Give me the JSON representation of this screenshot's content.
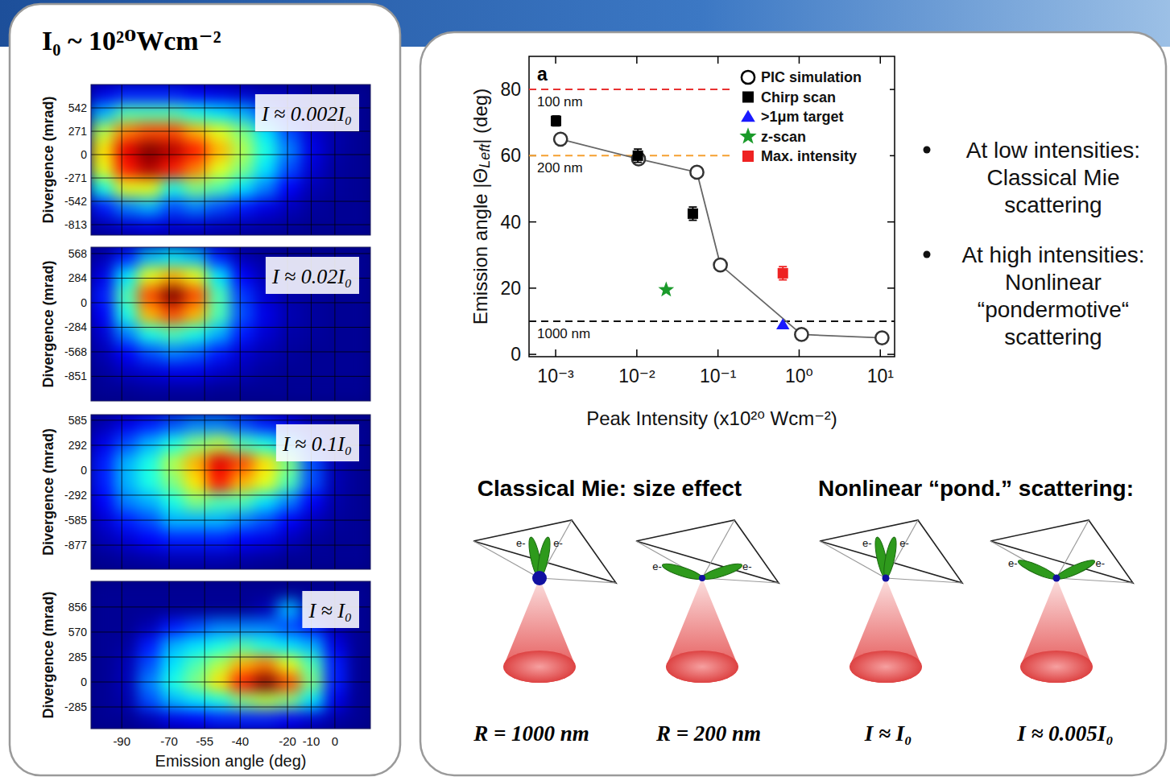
{
  "header": {
    "text": "I₀ ~ 10²⁰Wcm⁻²"
  },
  "chart_data": [
    {
      "type": "heatmap",
      "annotation": "I ≈ 0.002I₀",
      "ylabel": "Divergence (mrad)",
      "xlim": [
        -103,
        15
      ],
      "xticks": [
        -90,
        -70,
        -55,
        -40,
        -20,
        -10,
        0
      ],
      "ylim": [
        -934,
        813
      ],
      "yticks": [
        542,
        271,
        0,
        -271,
        -542,
        -813
      ],
      "grid": true,
      "tick_labels": "y",
      "zlim": [
        0,
        1
      ],
      "cells": [
        [
          0.1,
          0.15,
          0.15,
          0.15,
          0.12,
          0.1,
          0.08,
          0.05,
          0.05,
          0.03,
          0.02,
          0.02
        ],
        [
          0.3,
          0.45,
          0.45,
          0.45,
          0.4,
          0.35,
          0.3,
          0.2,
          0.12,
          0.06,
          0.03,
          0.02
        ],
        [
          0.55,
          0.75,
          0.8,
          0.8,
          0.7,
          0.6,
          0.5,
          0.35,
          0.2,
          0.08,
          0.04,
          0.02
        ],
        [
          0.65,
          0.9,
          1.0,
          0.95,
          0.85,
          0.7,
          0.55,
          0.4,
          0.25,
          0.1,
          0.04,
          0.02
        ],
        [
          0.6,
          0.85,
          0.95,
          0.85,
          0.75,
          0.6,
          0.5,
          0.35,
          0.2,
          0.08,
          0.03,
          0.02
        ],
        [
          0.4,
          0.6,
          0.6,
          0.4,
          0.5,
          0.45,
          0.35,
          0.25,
          0.12,
          0.05,
          0.03,
          0.02
        ],
        [
          0.15,
          0.25,
          0.3,
          0.2,
          0.25,
          0.2,
          0.15,
          0.1,
          0.06,
          0.03,
          0.02,
          0.02
        ],
        [
          0.05,
          0.08,
          0.1,
          0.08,
          0.08,
          0.06,
          0.05,
          0.04,
          0.03,
          0.02,
          0.02,
          0.02
        ]
      ]
    },
    {
      "type": "heatmap",
      "annotation": "I ≈ 0.02I₀",
      "ylabel": "Divergence (mrad)",
      "xlim": [
        -103,
        15
      ],
      "xticks": [
        -90,
        -70,
        -55,
        -40,
        -20,
        -10,
        0
      ],
      "ylim": [
        -1136,
        642
      ],
      "yticks": [
        568,
        284,
        0,
        -284,
        -568,
        -851
      ],
      "grid": true,
      "tick_labels": "y",
      "zlim": [
        0,
        1
      ],
      "cells": [
        [
          0.05,
          0.15,
          0.3,
          0.35,
          0.3,
          0.15,
          0.05,
          0.03,
          0.02,
          0.02,
          0.02,
          0.02
        ],
        [
          0.1,
          0.35,
          0.6,
          0.7,
          0.6,
          0.35,
          0.12,
          0.05,
          0.03,
          0.02,
          0.02,
          0.02
        ],
        [
          0.15,
          0.45,
          0.8,
          1.0,
          0.8,
          0.45,
          0.18,
          0.08,
          0.04,
          0.03,
          0.02,
          0.02
        ],
        [
          0.12,
          0.4,
          0.7,
          0.8,
          0.7,
          0.45,
          0.2,
          0.1,
          0.05,
          0.03,
          0.02,
          0.02
        ],
        [
          0.08,
          0.25,
          0.4,
          0.45,
          0.4,
          0.3,
          0.15,
          0.08,
          0.04,
          0.03,
          0.02,
          0.02
        ],
        [
          0.05,
          0.12,
          0.2,
          0.25,
          0.22,
          0.15,
          0.08,
          0.05,
          0.03,
          0.02,
          0.02,
          0.02
        ],
        [
          0.03,
          0.06,
          0.08,
          0.1,
          0.1,
          0.07,
          0.05,
          0.03,
          0.02,
          0.02,
          0.02,
          0.02
        ],
        [
          0.02,
          0.02,
          0.03,
          0.03,
          0.03,
          0.02,
          0.02,
          0.02,
          0.02,
          0.02,
          0.02,
          0.02
        ]
      ]
    },
    {
      "type": "heatmap",
      "annotation": "I ≈ 0.1I₀",
      "ylabel": "Divergence (mrad)",
      "xlim": [
        -103,
        15
      ],
      "xticks": [
        -90,
        -70,
        -55,
        -40,
        -20,
        -10,
        0
      ],
      "ylim": [
        -1159,
        650
      ],
      "yticks": [
        585,
        292,
        0,
        -292,
        -585,
        -877
      ],
      "grid": true,
      "tick_labels": "y",
      "zlim": [
        0,
        1
      ],
      "cells": [
        [
          0.05,
          0.1,
          0.15,
          0.2,
          0.25,
          0.25,
          0.2,
          0.15,
          0.1,
          0.05,
          0.03,
          0.02
        ],
        [
          0.1,
          0.2,
          0.3,
          0.4,
          0.5,
          0.55,
          0.45,
          0.4,
          0.3,
          0.15,
          0.05,
          0.02
        ],
        [
          0.15,
          0.3,
          0.4,
          0.55,
          0.7,
          0.9,
          0.8,
          0.65,
          0.5,
          0.2,
          0.05,
          0.02
        ],
        [
          0.15,
          0.3,
          0.4,
          0.5,
          0.65,
          0.85,
          0.7,
          0.6,
          0.45,
          0.2,
          0.05,
          0.02
        ],
        [
          0.12,
          0.25,
          0.3,
          0.4,
          0.5,
          0.45,
          0.45,
          0.35,
          0.25,
          0.12,
          0.04,
          0.02
        ],
        [
          0.08,
          0.15,
          0.2,
          0.3,
          0.3,
          0.3,
          0.25,
          0.2,
          0.12,
          0.06,
          0.03,
          0.02
        ],
        [
          0.05,
          0.08,
          0.12,
          0.15,
          0.15,
          0.15,
          0.12,
          0.1,
          0.06,
          0.03,
          0.02,
          0.02
        ],
        [
          0.02,
          0.03,
          0.04,
          0.05,
          0.05,
          0.05,
          0.04,
          0.03,
          0.02,
          0.02,
          0.02,
          0.02
        ]
      ]
    },
    {
      "type": "heatmap",
      "annotation": "I ≈ I₀",
      "ylabel": "Divergence (mrad)",
      "xlabel": "Emission angle (deg)",
      "xlim": [
        -103,
        15
      ],
      "xticks": [
        -90,
        -70,
        -55,
        -40,
        -20,
        -10,
        0
      ],
      "ylim": [
        -533,
        1149
      ],
      "yticks": [
        856,
        570,
        285,
        0,
        -285
      ],
      "grid": true,
      "tick_labels": true,
      "zlim": [
        0,
        1
      ],
      "cells": [
        [
          0.02,
          0.02,
          0.02,
          0.02,
          0.02,
          0.02,
          0.02,
          0.02,
          0.02,
          0.02,
          0.02,
          0.02
        ],
        [
          0.02,
          0.02,
          0.02,
          0.02,
          0.02,
          0.02,
          0.02,
          0.05,
          0.3,
          0.05,
          0.02,
          0.02
        ],
        [
          0.02,
          0.02,
          0.05,
          0.15,
          0.2,
          0.25,
          0.25,
          0.25,
          0.2,
          0.15,
          0.05,
          0.02
        ],
        [
          0.02,
          0.03,
          0.15,
          0.3,
          0.35,
          0.4,
          0.45,
          0.4,
          0.35,
          0.3,
          0.1,
          0.02
        ],
        [
          0.02,
          0.05,
          0.2,
          0.35,
          0.45,
          0.55,
          0.7,
          0.75,
          0.6,
          0.45,
          0.15,
          0.02
        ],
        [
          0.02,
          0.05,
          0.25,
          0.4,
          0.5,
          0.65,
          0.85,
          1.0,
          0.8,
          0.5,
          0.15,
          0.02
        ],
        [
          0.02,
          0.04,
          0.2,
          0.3,
          0.35,
          0.4,
          0.5,
          0.55,
          0.5,
          0.35,
          0.1,
          0.02
        ],
        [
          0.02,
          0.02,
          0.05,
          0.1,
          0.12,
          0.15,
          0.15,
          0.15,
          0.12,
          0.08,
          0.04,
          0.02
        ]
      ]
    },
    {
      "type": "scatter",
      "panel_label": "a",
      "xlabel": "Peak Intensity (x10²⁰ Wcm⁻²)",
      "ylabel": "Emission angle |ΘLeft| (deg)",
      "log": "x",
      "grid": false,
      "legend": "top-right",
      "xlim": [
        0.00047,
        15
      ],
      "xticks": [
        {
          "value": 0.001,
          "label": "10⁻³"
        },
        {
          "value": 0.01,
          "label": "10⁻²"
        },
        {
          "value": 0.1,
          "label": "10⁻¹"
        },
        {
          "value": 1,
          "label": "10⁰"
        },
        {
          "value": 10,
          "label": "10¹"
        }
      ],
      "ylim": [
        -0.7,
        90
      ],
      "yticks": [
        0,
        20,
        40,
        60,
        80
      ],
      "annotations": [
        {
          "value": 80,
          "label": "100 nm",
          "color": "#e83232",
          "line_style": "dashed"
        },
        {
          "value": 60,
          "label": "200 nm",
          "color": "#f5a030",
          "line_style": "dashed"
        },
        {
          "value": 10,
          "label": "1000 nm",
          "color": "#111111",
          "line_style": "dashed"
        }
      ],
      "series": [
        {
          "name": "PIC simulation",
          "type": "line",
          "marker": "open-circle",
          "color": "#333333",
          "x": [
            0.00115,
            0.0105,
            0.055,
            0.107,
            1.07,
            10.5
          ],
          "values": [
            65,
            59,
            55,
            27,
            6,
            5
          ]
        },
        {
          "name": "Chirp scan",
          "type": "scatter",
          "marker": "square",
          "color": "#000000",
          "x": [
            0.00101,
            0.0103,
            0.049
          ],
          "values": [
            70.5,
            60,
            42.5
          ],
          "errors": [
            1.5,
            2,
            2
          ]
        },
        {
          "name": ">1μm target",
          "type": "scatter",
          "marker": "triangle",
          "color": "#1a1aff",
          "x": [
            0.63
          ],
          "values": [
            9
          ]
        },
        {
          "name": "z-scan",
          "type": "scatter",
          "marker": "star",
          "color": "#1a9a2a",
          "x": [
            0.023
          ],
          "values": [
            19.5
          ]
        },
        {
          "name": "Max. intensity",
          "type": "scatter",
          "marker": "square",
          "color": "#ee2222",
          "x": [
            0.63
          ],
          "values": [
            24.5
          ],
          "errors": [
            2
          ]
        }
      ]
    }
  ],
  "bullets": [
    "At low intensities: Classical Mie scattering",
    "At high intensities: Nonlinear “pondermotive“ scattering"
  ],
  "diagrams": {
    "headings": [
      "Classical Mie: size effect",
      "Nonlinear “pond.” scattering:"
    ],
    "items": [
      {
        "caption": "R = 1000 nm",
        "labels": [
          "e-",
          "e-"
        ]
      },
      {
        "caption": "R = 200 nm",
        "labels": [
          "e-",
          "e-"
        ]
      },
      {
        "caption": "I ≈ I₀",
        "labels": [
          "e-",
          "e-"
        ]
      },
      {
        "caption": "I ≈ 0.005I₀",
        "labels": [
          "e-",
          "e-"
        ]
      }
    ]
  }
}
